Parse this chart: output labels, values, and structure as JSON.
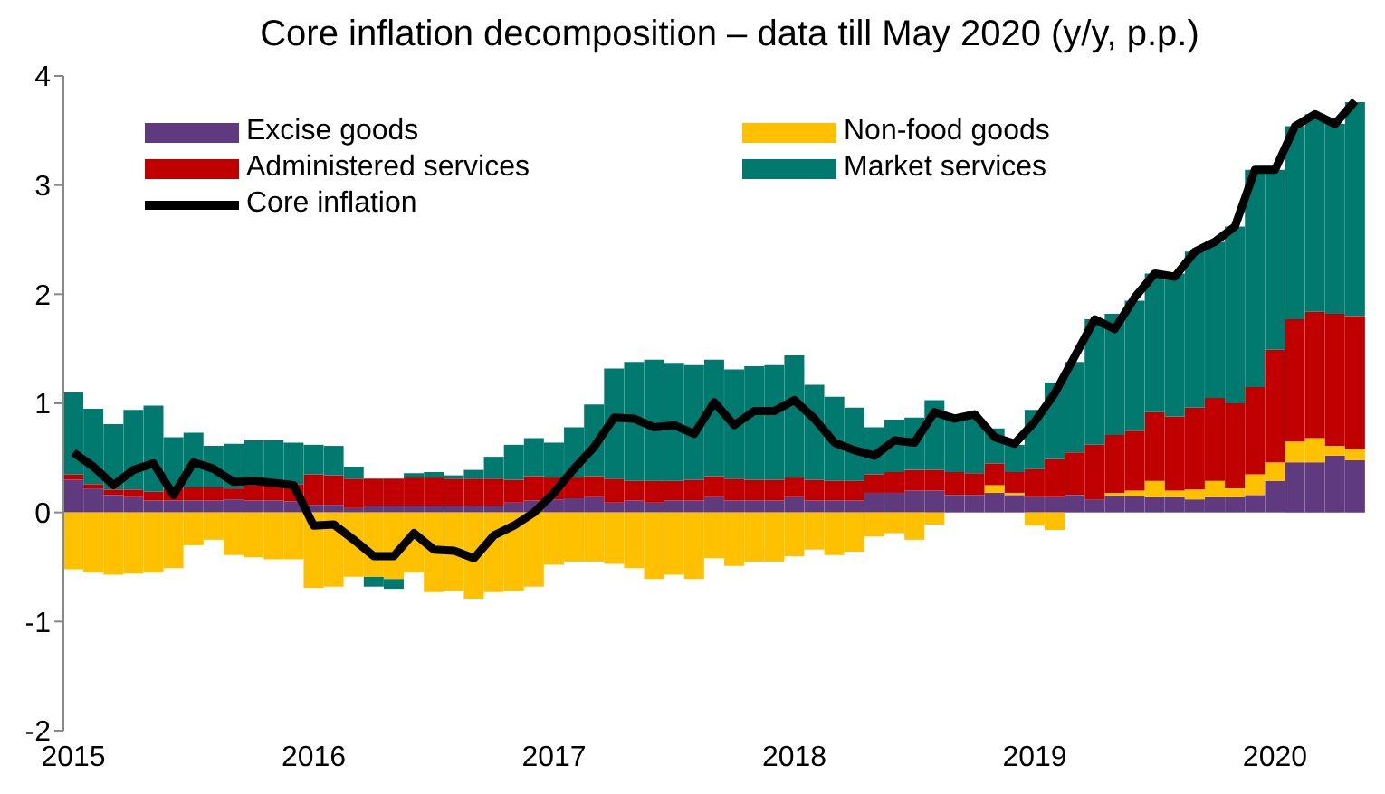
{
  "chart_data": {
    "type": "bar",
    "stacked": true,
    "title": "Core inflation decomposition – data till May 2020 (y/y, p.p.)",
    "categories": [
      "2015",
      null,
      null,
      null,
      null,
      null,
      null,
      null,
      null,
      null,
      null,
      null,
      "2016",
      null,
      null,
      null,
      null,
      null,
      null,
      null,
      null,
      null,
      null,
      null,
      "2017",
      null,
      null,
      null,
      null,
      null,
      null,
      null,
      null,
      null,
      null,
      null,
      "2018",
      null,
      null,
      null,
      null,
      null,
      null,
      null,
      null,
      null,
      null,
      null,
      "2019",
      null,
      null,
      null,
      null,
      null,
      null,
      null,
      null,
      null,
      null,
      null,
      "2020",
      null,
      null,
      null,
      null
    ],
    "ylim": [
      -2,
      4
    ],
    "yticks": [
      -2,
      -1,
      0,
      1,
      2,
      3,
      4
    ],
    "grid": false,
    "legend": "top",
    "marker": "none",
    "series": [
      {
        "name": "Excise goods",
        "color": "#5f3a7f",
        "values": [
          0.3,
          0.22,
          0.16,
          0.14,
          0.11,
          0.11,
          0.11,
          0.11,
          0.12,
          0.11,
          0.11,
          0.1,
          0.07,
          0.07,
          0.04,
          0.06,
          0.06,
          0.06,
          0.06,
          0.06,
          0.06,
          0.06,
          0.09,
          0.11,
          0.12,
          0.13,
          0.14,
          0.09,
          0.11,
          0.09,
          0.11,
          0.11,
          0.14,
          0.11,
          0.11,
          0.11,
          0.14,
          0.11,
          0.11,
          0.11,
          0.18,
          0.18,
          0.2,
          0.2,
          0.16,
          0.16,
          0.18,
          0.16,
          0.14,
          0.14,
          0.16,
          0.12,
          0.15,
          0.15,
          0.14,
          0.14,
          0.12,
          0.14,
          0.14,
          0.16,
          0.29,
          0.46,
          0.46,
          0.52,
          0.48
        ]
      },
      {
        "name": "Non-food goods",
        "color": "#ffc000",
        "values": [
          -0.52,
          -0.55,
          -0.57,
          -0.56,
          -0.55,
          -0.51,
          -0.3,
          -0.25,
          -0.39,
          -0.41,
          -0.43,
          -0.43,
          -0.69,
          -0.68,
          -0.59,
          -0.59,
          -0.61,
          -0.55,
          -0.73,
          -0.72,
          -0.79,
          -0.73,
          -0.72,
          -0.68,
          -0.48,
          -0.45,
          -0.45,
          -0.47,
          -0.51,
          -0.61,
          -0.57,
          -0.61,
          -0.42,
          -0.49,
          -0.45,
          -0.45,
          -0.4,
          -0.34,
          -0.39,
          -0.36,
          -0.22,
          -0.19,
          -0.25,
          -0.11,
          0,
          0,
          0.07,
          0.02,
          -0.12,
          -0.16,
          0,
          0,
          0.03,
          0.05,
          0.15,
          0.06,
          0.09,
          0.15,
          0.08,
          0.19,
          0.17,
          0.19,
          0.22,
          0.09,
          0.1
        ]
      },
      {
        "name": "Administered services",
        "color": "#c00000",
        "values": [
          0.05,
          0.04,
          0.05,
          0.07,
          0.08,
          0.11,
          0.12,
          0.12,
          0.1,
          0.14,
          0.15,
          0.16,
          0.28,
          0.27,
          0.27,
          0.25,
          0.25,
          0.26,
          0.26,
          0.25,
          0.25,
          0.25,
          0.21,
          0.22,
          0.2,
          0.19,
          0.19,
          0.22,
          0.18,
          0.2,
          0.18,
          0.19,
          0.19,
          0.2,
          0.19,
          0.19,
          0.18,
          0.19,
          0.18,
          0.18,
          0.17,
          0.19,
          0.19,
          0.19,
          0.21,
          0.2,
          0.2,
          0.19,
          0.26,
          0.35,
          0.39,
          0.5,
          0.53,
          0.55,
          0.63,
          0.68,
          0.75,
          0.76,
          0.78,
          0.8,
          1.03,
          1.12,
          1.16,
          1.21,
          1.22
        ]
      },
      {
        "name": "Market services",
        "color": "#007a6e",
        "values": [
          0.75,
          0.69,
          0.6,
          0.73,
          0.79,
          0.47,
          0.5,
          0.38,
          0.41,
          0.41,
          0.4,
          0.38,
          0.27,
          0.27,
          0.11,
          -0.09,
          -0.09,
          0.04,
          0.05,
          0.03,
          0.08,
          0.2,
          0.32,
          0.35,
          0.32,
          0.46,
          0.66,
          1.01,
          1.09,
          1.11,
          1.08,
          1.05,
          1.07,
          1.0,
          1.04,
          1.05,
          1.12,
          0.87,
          0.77,
          0.67,
          0.43,
          0.48,
          0.48,
          0.64,
          0.48,
          0.5,
          0.32,
          0.25,
          0.54,
          0.7,
          0.83,
          1.15,
          1.11,
          1.19,
          1.27,
          1.31,
          1.43,
          1.43,
          1.62,
          1.99,
          1.65,
          1.77,
          1.81,
          1.74,
          1.96
        ]
      },
      {
        "name": "Core inflation",
        "type": "line",
        "color": "#000000",
        "line_style": "solid",
        "values": [
          0.55,
          0.42,
          0.25,
          0.39,
          0.45,
          0.16,
          0.46,
          0.4,
          0.28,
          0.29,
          0.27,
          0.25,
          -0.12,
          -0.11,
          -0.25,
          -0.4,
          -0.4,
          -0.19,
          -0.34,
          -0.35,
          -0.42,
          -0.21,
          -0.12,
          0.0,
          0.18,
          0.4,
          0.6,
          0.87,
          0.86,
          0.78,
          0.8,
          0.72,
          1.01,
          0.8,
          0.93,
          0.93,
          1.03,
          0.86,
          0.64,
          0.57,
          0.52,
          0.66,
          0.64,
          0.92,
          0.86,
          0.9,
          0.69,
          0.63,
          0.83,
          1.09,
          1.43,
          1.77,
          1.68,
          1.97,
          2.19,
          2.16,
          2.39,
          2.48,
          2.62,
          3.14,
          3.14,
          3.54,
          3.65,
          3.56,
          3.77
        ]
      }
    ]
  }
}
